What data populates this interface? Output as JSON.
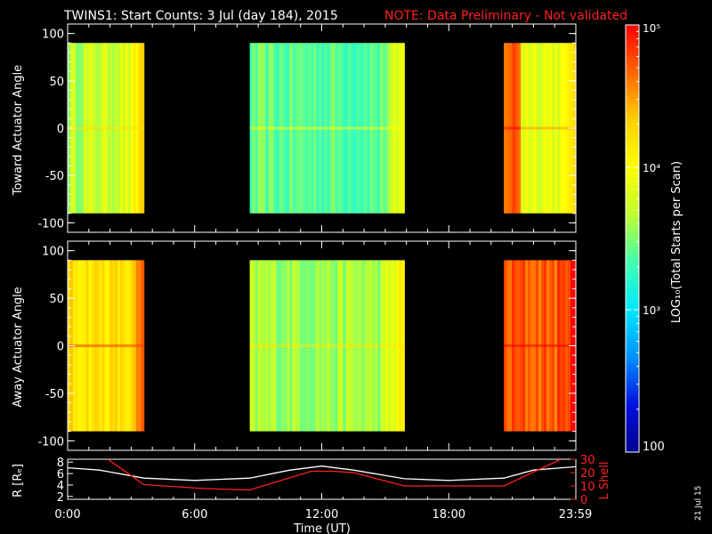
{
  "title": {
    "main": "TWINS1: Start Counts:  3 Jul (day 184), 2015",
    "note": "NOTE: Data Preliminary - Not validated"
  },
  "date_stamp": "21 Jul 15",
  "colorbar": {
    "label": "LOG₁₀(Total Starts per Scan)",
    "ticks": [
      "10⁵",
      "10⁴",
      "10³",
      "100"
    ],
    "tick_values": [
      100000,
      10000,
      1000,
      100
    ],
    "colors": [
      "#ff0000",
      "#ff6600",
      "#ffd000",
      "#ffff00",
      "#bfff30",
      "#40ffb0",
      "#00e8ff",
      "#0090ff",
      "#0010e0",
      "#000090"
    ]
  },
  "chart_data": [
    {
      "type": "heatmap",
      "ylabel": "Toward Actuator Angle",
      "ylim": [
        -110,
        110
      ],
      "y_ticks": [
        100,
        50,
        0,
        -50,
        -100
      ],
      "data_angle_range": [
        -90,
        90
      ],
      "data_intervals_hours": [
        [
          0.0,
          3.6
        ],
        [
          8.6,
          15.9
        ],
        [
          20.6,
          24.0
        ]
      ],
      "mean_log10_counts": [
        {
          "t_start": 0.0,
          "t_end": 3.6,
          "value": 3.65
        },
        {
          "t_start": 8.6,
          "t_end": 15.9,
          "value": 3.4
        },
        {
          "t_start": 20.6,
          "t_end": 21.4,
          "value": 4.7
        },
        {
          "t_start": 21.4,
          "t_end": 24.0,
          "value": 3.9
        }
      ]
    },
    {
      "type": "heatmap",
      "ylabel": "Away Actuator Angle",
      "ylim": [
        -110,
        110
      ],
      "y_ticks": [
        100,
        50,
        0,
        -50,
        -100
      ],
      "data_angle_range": [
        -90,
        90
      ],
      "data_intervals_hours": [
        [
          0.0,
          3.6
        ],
        [
          8.6,
          15.9
        ],
        [
          20.6,
          24.0
        ]
      ],
      "mean_log10_counts": [
        {
          "t_start": 0.0,
          "t_end": 3.6,
          "value": 4.2
        },
        {
          "t_start": 8.6,
          "t_end": 15.9,
          "value": 3.6
        },
        {
          "t_start": 20.6,
          "t_end": 24.0,
          "value": 4.7
        }
      ]
    },
    {
      "type": "line",
      "xlabel": "Time (UT)",
      "x_tick_labels": [
        "0:00",
        "6:00",
        "12:00",
        "18:00",
        "23:59"
      ],
      "x_tick_hours": [
        0,
        6,
        12,
        18,
        23.98
      ],
      "xlim": [
        0,
        24
      ],
      "y_left_label": "R [Rₑ]",
      "y_left_ticks": [
        8,
        6,
        4,
        2
      ],
      "y_left_lim": [
        1.5,
        8.5
      ],
      "y_right_label": "L Shell",
      "y_right_ticks": [
        30,
        20,
        10,
        0
      ],
      "y_right_ticks_labels": [
        "30",
        "20",
        "10",
        "0"
      ],
      "y_right_lim": [
        0,
        30
      ],
      "series": [
        {
          "axis": "left",
          "color": "#ffffff",
          "x": [
            0,
            1.5,
            3.6,
            6,
            8.6,
            10.5,
            12,
            13.5,
            15.9,
            18,
            20.6,
            22,
            24
          ],
          "y": [
            7.0,
            6.6,
            5.2,
            4.8,
            5.2,
            6.6,
            7.3,
            6.6,
            5.1,
            4.8,
            5.2,
            6.6,
            7.2
          ]
        },
        {
          "axis": "right",
          "color": "#ff2020",
          "x": [
            1.9,
            3.6,
            6.5,
            8.6,
            11.5,
            12.5,
            13.5,
            15.9,
            20.6,
            23.3
          ],
          "y": [
            30,
            11,
            8,
            7,
            21,
            21,
            20,
            10,
            10,
            30
          ]
        }
      ]
    }
  ]
}
